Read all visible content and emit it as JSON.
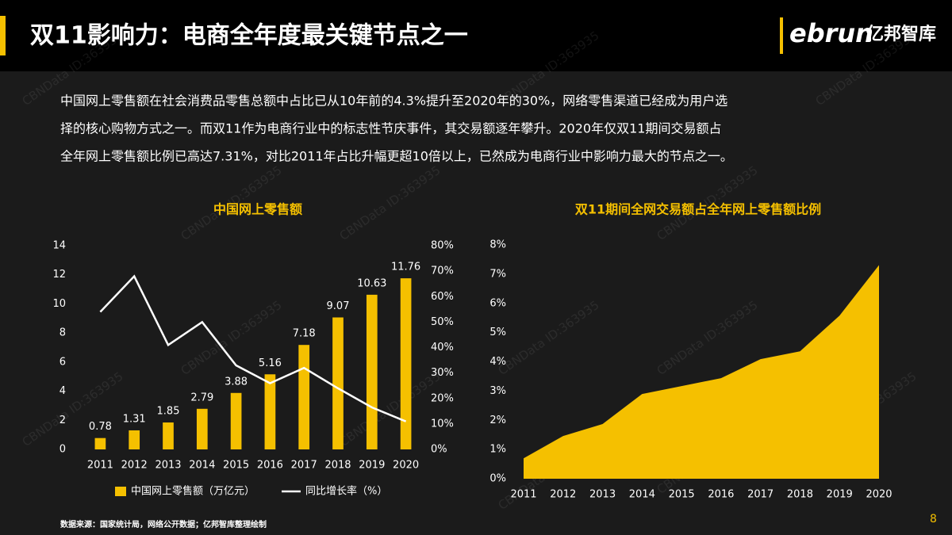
{
  "header": {
    "title": "双11影响力：电商全年度最关键节点之一",
    "logo_en": "ebrun",
    "logo_cn": "亿邦智库"
  },
  "body": {
    "lines": [
      "中国网上零售额在社会消费品零售总额中占比已从10年前的4.3%提升至2020年的30%，网络零售渠道已经成为用户选",
      "择的核心购物方式之一。而双11作为电商行业中的标志性节庆事件，其交易额逐年攀升。2020年仅双11期间交易额占",
      "全年网上零售额比例已高达7.31%，对比2011年占比升幅更超10倍以上，已然成为电商行业中影响力最大的节点之一。"
    ]
  },
  "watermark": "CBNData ID:363935",
  "source": "数据来源：国家统计局，网络公开数据；亿邦智库整理绘制",
  "page_number": "8",
  "chart_data": [
    {
      "type": "bar",
      "title": "中国网上零售额",
      "categories": [
        "2011",
        "2012",
        "2013",
        "2014",
        "2015",
        "2016",
        "2017",
        "2018",
        "2019",
        "2020"
      ],
      "series": [
        {
          "name": "中国网上零售额（万亿元）",
          "color": "#f5c000",
          "values": [
            0.78,
            1.31,
            1.85,
            2.79,
            3.88,
            5.16,
            7.18,
            9.07,
            10.63,
            11.76
          ]
        },
        {
          "name": "同比增长率（%）",
          "color": "#ffffff",
          "type": "line",
          "axis": "y2",
          "values": [
            54,
            68,
            41,
            50,
            33,
            26,
            32,
            24,
            16.5,
            11
          ]
        }
      ],
      "ylim": [
        0,
        14
      ],
      "yticks": [
        0,
        2,
        4,
        6,
        8,
        10,
        12,
        14
      ],
      "y2lim": [
        0,
        80
      ],
      "y2ticks": [
        {
          "value": 0,
          "label": "0%"
        },
        {
          "value": 10,
          "label": "10%"
        },
        {
          "value": 20,
          "label": "20%"
        },
        {
          "value": 30,
          "label": "30%"
        },
        {
          "value": 40,
          "label": "40%"
        },
        {
          "value": 50,
          "label": "50%"
        },
        {
          "value": 60,
          "label": "60%"
        },
        {
          "value": 70,
          "label": "70%"
        },
        {
          "value": 80,
          "label": "80%"
        }
      ]
    },
    {
      "type": "area",
      "title": "双11期间全网交易额占全年网上零售额比例",
      "categories": [
        "2011",
        "2012",
        "2013",
        "2014",
        "2015",
        "2016",
        "2017",
        "2018",
        "2019",
        "2020"
      ],
      "values": [
        0.7,
        1.46,
        1.87,
        2.9,
        3.17,
        3.44,
        4.09,
        4.36,
        5.58,
        7.31
      ],
      "color": "#f5c000",
      "ylim": [
        0,
        8
      ],
      "yticks": [
        {
          "value": 0,
          "label": "0%"
        },
        {
          "value": 1,
          "label": "1%"
        },
        {
          "value": 2,
          "label": "2%"
        },
        {
          "value": 3,
          "label": "3%"
        },
        {
          "value": 4,
          "label": "4%"
        },
        {
          "value": 5,
          "label": "5%"
        },
        {
          "value": 6,
          "label": "6%"
        },
        {
          "value": 7,
          "label": "7%"
        },
        {
          "value": 8,
          "label": "8%"
        }
      ]
    }
  ]
}
